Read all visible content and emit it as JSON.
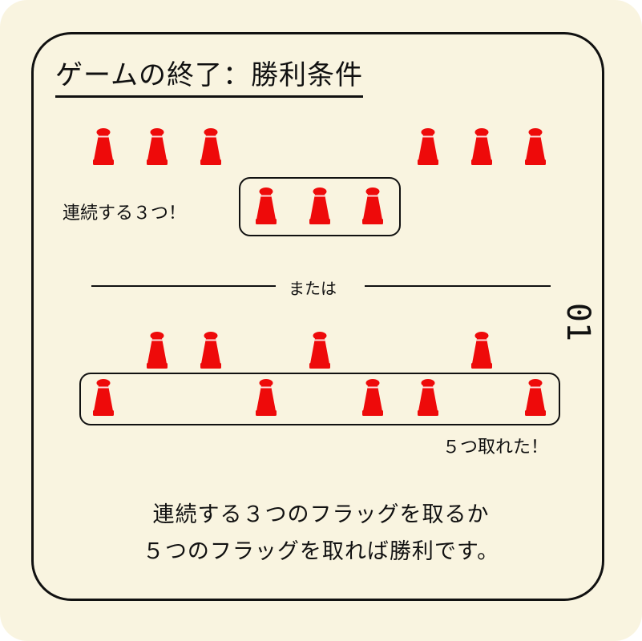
{
  "title": "ゲームの終了：勝利条件",
  "pawn_color": "#ee0a0a",
  "example_one": {
    "label": "連続する３つ！"
  },
  "separator": {
    "label": "または"
  },
  "example_two": {
    "label": "５つ取れた！"
  },
  "page_number": "01",
  "summary": {
    "line1": "連続する３つのフラッグを取るか",
    "line2": "５つのフラッグを取れば勝利です。"
  }
}
